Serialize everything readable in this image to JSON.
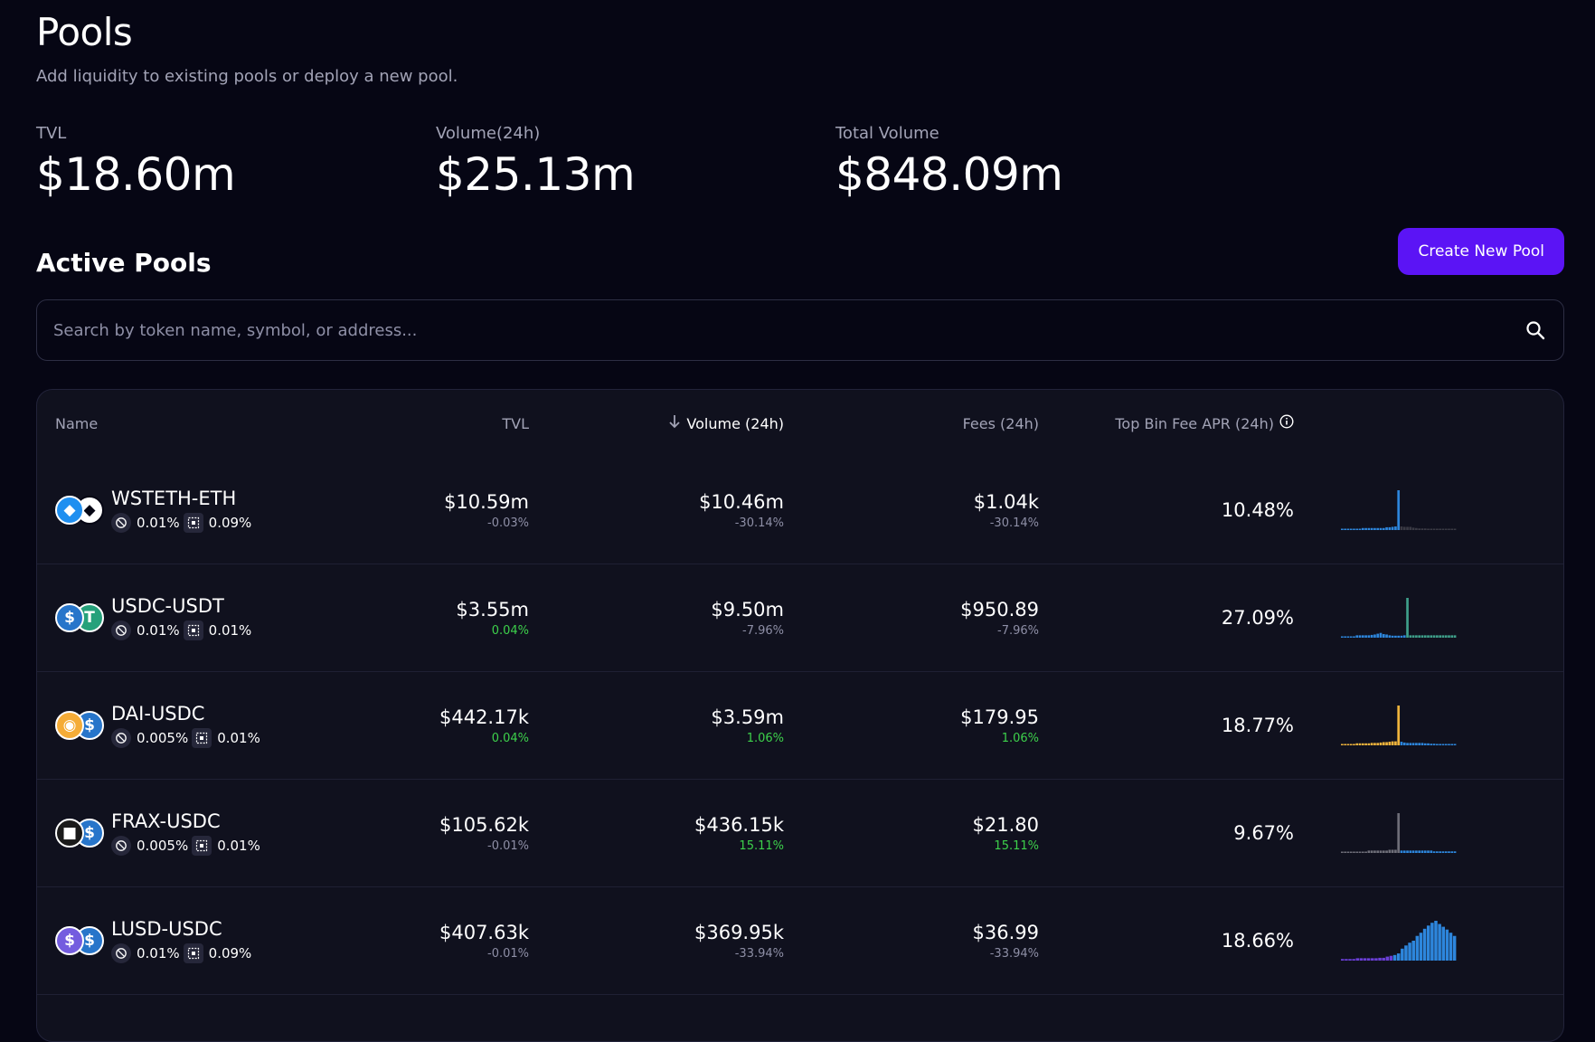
{
  "header": {
    "title": "Pools",
    "subtitle": "Add liquidity to existing pools or deploy a new pool."
  },
  "stats": [
    {
      "label": "TVL",
      "value": "$18.60m"
    },
    {
      "label": "Volume(24h)",
      "value": "$25.13m"
    },
    {
      "label": "Total Volume",
      "value": "$848.09m"
    }
  ],
  "section": {
    "title": "Active Pools",
    "create_button": "Create New Pool"
  },
  "search": {
    "placeholder": "Search by token name, symbol, or address...",
    "icon": "search-icon"
  },
  "table": {
    "columns": {
      "name": "Name",
      "tvl": "TVL",
      "volume": "Volume (24h)",
      "fees": "Fees (24h)",
      "apr": "Top Bin Fee APR (24h)"
    },
    "sort_column": "volume",
    "sort_direction": "descending",
    "rows": [
      {
        "pair": "WSTETH-ETH",
        "tokens": [
          {
            "symbol": "WSTETH",
            "icon": "wsteth-icon",
            "color": "#1f8ff0"
          },
          {
            "symbol": "ETH",
            "icon": "eth-icon",
            "color": "#ffffff"
          }
        ],
        "base_fee": "0.01%",
        "bin_step": "0.09%",
        "tvl": "$10.59m",
        "tvl_change": "-0.03%",
        "tvl_change_positive": false,
        "volume": "$10.46m",
        "volume_change": "-30.14%",
        "volume_change_positive": false,
        "fees": "$1.04k",
        "fees_change": "-30.14%",
        "fees_change_positive": false,
        "apr": "10.48%",
        "liquidity_bins": {
          "left": [
            0.02,
            0.02,
            0.02,
            0.02,
            0.02,
            0.02,
            0.02,
            0.05,
            0.05,
            0.05,
            0.05,
            0.05,
            0.05,
            0.05,
            0.05,
            0.07,
            0.07,
            0.08,
            0.09,
            1.0
          ],
          "right": [
            0.09,
            0.08,
            0.08,
            0.08,
            0.06,
            0.05,
            0.04,
            0.04,
            0.04,
            0.03,
            0.03,
            0.03,
            0.03,
            0.03,
            0.03,
            0.03,
            0.03,
            0.03,
            0.03
          ],
          "left_color": "#2d86dc",
          "right_color": "#3a3a44"
        }
      },
      {
        "pair": "USDC-USDT",
        "tokens": [
          {
            "symbol": "USDC",
            "icon": "usdc-icon",
            "color": "#2775ca"
          },
          {
            "symbol": "USDT",
            "icon": "usdt-icon",
            "color": "#26a17b"
          }
        ],
        "base_fee": "0.01%",
        "bin_step": "0.01%",
        "tvl": "$3.55m",
        "tvl_change": "0.04%",
        "tvl_change_positive": true,
        "volume": "$9.50m",
        "volume_change": "-7.96%",
        "volume_change_positive": false,
        "fees": "$950.89",
        "fees_change": "-7.96%",
        "fees_change_positive": false,
        "apr": "27.09%",
        "liquidity_bins": {
          "left": [
            0.02,
            0.02,
            0.02,
            0.02,
            0.02,
            0.06,
            0.06,
            0.06,
            0.06,
            0.06,
            0.07,
            0.08,
            0.1,
            0.12,
            0.09,
            0.08,
            0.06,
            0.05,
            0.05,
            0.05,
            0.05,
            0.06
          ],
          "right": [
            1.0,
            0.06,
            0.06,
            0.06,
            0.06,
            0.06,
            0.06,
            0.06,
            0.06,
            0.06,
            0.06,
            0.06,
            0.06,
            0.06,
            0.06,
            0.06,
            0.06
          ],
          "left_color": "#2d86dc",
          "right_color": "#3e9f8a"
        }
      },
      {
        "pair": "DAI-USDC",
        "tokens": [
          {
            "symbol": "DAI",
            "icon": "dai-icon",
            "color": "#f5ac37"
          },
          {
            "symbol": "USDC",
            "icon": "usdc-icon",
            "color": "#2775ca"
          }
        ],
        "base_fee": "0.005%",
        "bin_step": "0.01%",
        "tvl": "$442.17k",
        "tvl_change": "0.04%",
        "tvl_change_positive": true,
        "volume": "$3.59m",
        "volume_change": "1.06%",
        "volume_change_positive": true,
        "fees": "$179.95",
        "fees_change": "1.06%",
        "fees_change_positive": true,
        "apr": "18.77%",
        "liquidity_bins": {
          "left": [
            0.03,
            0.03,
            0.03,
            0.03,
            0.03,
            0.05,
            0.05,
            0.05,
            0.05,
            0.05,
            0.06,
            0.06,
            0.06,
            0.07,
            0.08,
            0.08,
            0.09,
            0.1,
            0.1,
            1.0
          ],
          "right": [
            0.09,
            0.07,
            0.06,
            0.06,
            0.06,
            0.06,
            0.06,
            0.06,
            0.05,
            0.05,
            0.04,
            0.04,
            0.03,
            0.03,
            0.03,
            0.03,
            0.03,
            0.03,
            0.03
          ],
          "left_color": "#f0b43c",
          "right_color": "#2d86dc"
        }
      },
      {
        "pair": "FRAX-USDC",
        "tokens": [
          {
            "symbol": "FRAX",
            "icon": "frax-icon",
            "color": "#1a1a1a"
          },
          {
            "symbol": "USDC",
            "icon": "usdc-icon",
            "color": "#2775ca"
          }
        ],
        "base_fee": "0.005%",
        "bin_step": "0.01%",
        "tvl": "$105.62k",
        "tvl_change": "-0.01%",
        "tvl_change_positive": false,
        "volume": "$436.15k",
        "volume_change": "15.11%",
        "volume_change_positive": true,
        "fees": "$21.80",
        "fees_change": "15.11%",
        "fees_change_positive": true,
        "apr": "9.67%",
        "liquidity_bins": {
          "left": [
            0.03,
            0.03,
            0.03,
            0.03,
            0.03,
            0.03,
            0.03,
            0.03,
            0.03,
            0.06,
            0.06,
            0.06,
            0.06,
            0.06,
            0.06,
            0.06,
            0.08,
            0.08,
            0.08,
            1.0
          ],
          "right": [
            0.06,
            0.06,
            0.06,
            0.06,
            0.06,
            0.06,
            0.06,
            0.06,
            0.06,
            0.06,
            0.06,
            0.04,
            0.04,
            0.04,
            0.04,
            0.04,
            0.04,
            0.04,
            0.04
          ],
          "left_color": "#6e6e78",
          "right_color": "#2d86dc"
        }
      },
      {
        "pair": "LUSD-USDC",
        "tokens": [
          {
            "symbol": "LUSD",
            "icon": "lusd-icon",
            "color": "#745ddf"
          },
          {
            "symbol": "USDC",
            "icon": "usdc-icon",
            "color": "#2775ca"
          }
        ],
        "base_fee": "0.01%",
        "bin_step": "0.09%",
        "tvl": "$407.63k",
        "tvl_change": "-0.01%",
        "tvl_change_positive": false,
        "volume": "$369.95k",
        "volume_change": "-33.94%",
        "volume_change_positive": false,
        "fees": "$36.99",
        "fees_change": "-33.94%",
        "fees_change_positive": false,
        "apr": "18.66%",
        "liquidity_bins": {
          "left": [
            0.04,
            0.04,
            0.04,
            0.04,
            0.06,
            0.06,
            0.06,
            0.06,
            0.06,
            0.06,
            0.07,
            0.07,
            0.1,
            0.12
          ],
          "right": [
            0.14,
            0.18,
            0.3,
            0.38,
            0.45,
            0.5,
            0.62,
            0.7,
            0.8,
            0.88,
            0.95,
            1.0,
            0.92,
            0.85,
            0.78,
            0.7,
            0.62
          ],
          "left_color": "#6a3fd6",
          "right_color": "#2d86dc"
        }
      }
    ]
  }
}
